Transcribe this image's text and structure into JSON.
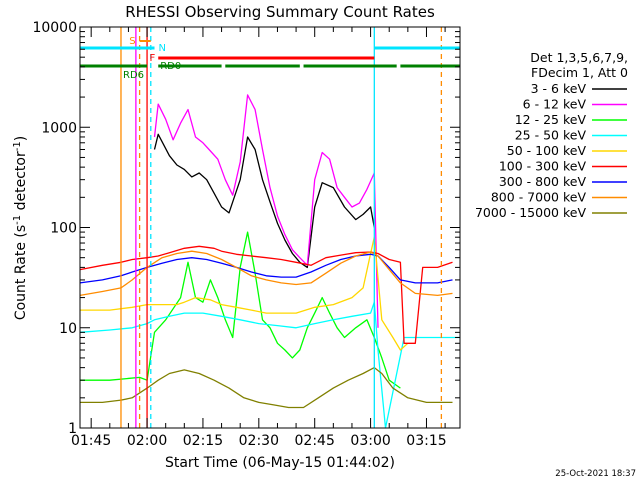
{
  "chart_data": {
    "type": "line",
    "title": "RHESSI Observing Summary Count Rates",
    "xlabel": "Start Time (06-May-15 01:44:02)",
    "ylabel": "Count Rate (s⁻¹ detector⁻¹)",
    "ylabel_main": "Count Rate (s",
    "ylabel_sup1": "-1",
    "ylabel_mid": " detector",
    "ylabel_sup2": "-1",
    "ylabel_end": ")",
    "y_scale": "log",
    "ylim": [
      1,
      10000
    ],
    "xlim": [
      "01:42",
      "03:24"
    ],
    "x_ticks": [
      "01:45",
      "02:00",
      "02:15",
      "02:30",
      "02:45",
      "03:00",
      "03:15"
    ],
    "y_ticks": [
      "1",
      "10",
      "100",
      "1000",
      "10000"
    ],
    "legend_header": [
      "Det 1,3,5,6,7,9,",
      "FDecim 1, Att 0"
    ],
    "timestamp": "25-Oct-2021 18:37",
    "flags": [
      {
        "label": "S",
        "color": "#ff8c00",
        "segments": [
          [
            "01:58",
            "02:01"
          ]
        ]
      },
      {
        "label": "N",
        "color": "#00e5ff",
        "segments": [
          [
            "01:42",
            "02:02"
          ],
          [
            "03:01",
            "03:24"
          ]
        ]
      },
      {
        "label": "F",
        "color": "#ff0000",
        "segments": [
          [
            "02:03",
            "03:01"
          ]
        ]
      },
      {
        "label": "RD0",
        "color": "#008000",
        "segments": [
          [
            "02:03",
            "02:20"
          ],
          [
            "02:21",
            "02:41"
          ],
          [
            "02:42",
            "03:07"
          ],
          [
            "03:08",
            "03:24"
          ]
        ]
      },
      {
        "label": "RD6",
        "color": "#008000",
        "segments": [
          [
            "01:42",
            "02:00"
          ]
        ]
      }
    ],
    "vlines": [
      {
        "x": "01:53",
        "color": "#ff8c00",
        "dash": false
      },
      {
        "x": "01:57",
        "color": "#ff00ff",
        "dash": false
      },
      {
        "x": "01:58",
        "color": "#ff8c00",
        "dash": true
      },
      {
        "x": "02:00",
        "color": "#ff0000",
        "dash": false
      },
      {
        "x": "02:01",
        "color": "#00e5ff",
        "dash": true
      },
      {
        "x": "03:01",
        "color": "#00e5ff",
        "dash": false
      },
      {
        "x": "03:19",
        "color": "#ff8c00",
        "dash": true
      }
    ],
    "series": [
      {
        "name": "3 - 6 keV",
        "color": "#000000",
        "points": [
          [
            "02:02",
            600
          ],
          [
            "02:03",
            850
          ],
          [
            "02:06",
            520
          ],
          [
            "02:08",
            420
          ],
          [
            "02:10",
            380
          ],
          [
            "02:12",
            320
          ],
          [
            "02:14",
            350
          ],
          [
            "02:16",
            300
          ],
          [
            "02:18",
            220
          ],
          [
            "02:20",
            160
          ],
          [
            "02:22",
            140
          ],
          [
            "02:25",
            300
          ],
          [
            "02:27",
            800
          ],
          [
            "02:29",
            600
          ],
          [
            "02:31",
            300
          ],
          [
            "02:33",
            180
          ],
          [
            "02:35",
            110
          ],
          [
            "02:37",
            75
          ],
          [
            "02:39",
            55
          ],
          [
            "02:41",
            45
          ],
          [
            "02:43",
            40
          ],
          [
            "02:45",
            160
          ],
          [
            "02:47",
            280
          ],
          [
            "02:50",
            250
          ],
          [
            "02:53",
            160
          ],
          [
            "02:56",
            120
          ],
          [
            "02:58",
            135
          ],
          [
            "03:00",
            160
          ],
          [
            "03:01",
            100
          ]
        ]
      },
      {
        "name": "6 - 12 keV",
        "color": "#ff00ff",
        "points": [
          [
            "02:02",
            800
          ],
          [
            "02:03",
            1700
          ],
          [
            "02:05",
            1200
          ],
          [
            "02:07",
            750
          ],
          [
            "02:09",
            1100
          ],
          [
            "02:11",
            1500
          ],
          [
            "02:13",
            800
          ],
          [
            "02:15",
            700
          ],
          [
            "02:17",
            580
          ],
          [
            "02:19",
            480
          ],
          [
            "02:21",
            300
          ],
          [
            "02:23",
            210
          ],
          [
            "02:25",
            450
          ],
          [
            "02:27",
            2100
          ],
          [
            "02:29",
            1500
          ],
          [
            "02:31",
            600
          ],
          [
            "02:33",
            250
          ],
          [
            "02:35",
            130
          ],
          [
            "02:37",
            85
          ],
          [
            "02:39",
            60
          ],
          [
            "02:41",
            50
          ],
          [
            "02:43",
            42
          ],
          [
            "02:45",
            300
          ],
          [
            "02:47",
            560
          ],
          [
            "02:49",
            480
          ],
          [
            "02:51",
            250
          ],
          [
            "02:53",
            200
          ],
          [
            "02:55",
            160
          ],
          [
            "02:57",
            175
          ],
          [
            "02:59",
            240
          ],
          [
            "03:01",
            350
          ],
          [
            "03:02",
            10
          ]
        ]
      },
      {
        "name": "12 - 25 keV",
        "color": "#00ff00",
        "points": [
          [
            "01:42",
            3
          ],
          [
            "01:50",
            3
          ],
          [
            "01:58",
            3.2
          ],
          [
            "02:00",
            3
          ],
          [
            "02:02",
            9
          ],
          [
            "02:05",
            12
          ],
          [
            "02:09",
            20
          ],
          [
            "02:11",
            45
          ],
          [
            "02:13",
            20
          ],
          [
            "02:15",
            18
          ],
          [
            "02:17",
            30
          ],
          [
            "02:19",
            20
          ],
          [
            "02:21",
            12
          ],
          [
            "02:23",
            8
          ],
          [
            "02:25",
            40
          ],
          [
            "02:27",
            90
          ],
          [
            "02:29",
            35
          ],
          [
            "02:31",
            12
          ],
          [
            "02:33",
            10
          ],
          [
            "02:35",
            7
          ],
          [
            "02:37",
            6
          ],
          [
            "02:39",
            5
          ],
          [
            "02:41",
            6
          ],
          [
            "02:43",
            10
          ],
          [
            "02:45",
            14
          ],
          [
            "02:47",
            20
          ],
          [
            "02:49",
            14
          ],
          [
            "02:51",
            10
          ],
          [
            "02:53",
            8
          ],
          [
            "02:56",
            10
          ],
          [
            "02:59",
            12
          ],
          [
            "03:01",
            8
          ],
          [
            "03:03",
            5
          ],
          [
            "03:05",
            3
          ],
          [
            "03:08",
            2.5
          ]
        ]
      },
      {
        "name": "25 - 50 keV",
        "color": "#00ffff",
        "points": [
          [
            "01:42",
            9
          ],
          [
            "01:50",
            9.5
          ],
          [
            "01:56",
            10
          ],
          [
            "02:00",
            11
          ],
          [
            "02:02",
            12
          ],
          [
            "02:06",
            13
          ],
          [
            "02:10",
            14
          ],
          [
            "02:15",
            14
          ],
          [
            "02:20",
            13
          ],
          [
            "02:25",
            12
          ],
          [
            "02:30",
            11
          ],
          [
            "02:35",
            10.5
          ],
          [
            "02:40",
            10
          ],
          [
            "02:45",
            11
          ],
          [
            "02:50",
            12
          ],
          [
            "02:55",
            13
          ],
          [
            "03:00",
            14
          ],
          [
            "03:01",
            18
          ],
          [
            "03:02",
            6
          ],
          [
            "03:04",
            1
          ],
          [
            "03:09",
            8
          ],
          [
            "03:15",
            8
          ],
          [
            "03:24",
            8
          ]
        ]
      },
      {
        "name": "50 - 100 keV",
        "color": "#ffd700",
        "points": [
          [
            "01:42",
            15
          ],
          [
            "01:50",
            15
          ],
          [
            "01:56",
            16
          ],
          [
            "02:00",
            17
          ],
          [
            "02:04",
            17
          ],
          [
            "02:08",
            17
          ],
          [
            "02:10",
            18
          ],
          [
            "02:13",
            20
          ],
          [
            "02:17",
            19
          ],
          [
            "02:20",
            17
          ],
          [
            "02:24",
            16
          ],
          [
            "02:28",
            15
          ],
          [
            "02:32",
            14
          ],
          [
            "02:36",
            14
          ],
          [
            "02:40",
            14
          ],
          [
            "02:45",
            16
          ],
          [
            "02:50",
            17
          ],
          [
            "02:55",
            20
          ],
          [
            "02:58",
            25
          ],
          [
            "03:00",
            55
          ],
          [
            "03:01",
            80
          ],
          [
            "03:03",
            12
          ],
          [
            "03:06",
            8
          ],
          [
            "03:08",
            6
          ],
          [
            "03:10",
            7
          ]
        ]
      },
      {
        "name": "100 - 300 keV",
        "color": "#ff0000",
        "points": [
          [
            "01:42",
            38
          ],
          [
            "01:48",
            42
          ],
          [
            "01:53",
            45
          ],
          [
            "01:56",
            48
          ],
          [
            "02:00",
            50
          ],
          [
            "02:03",
            52
          ],
          [
            "02:06",
            56
          ],
          [
            "02:10",
            62
          ],
          [
            "02:14",
            65
          ],
          [
            "02:18",
            62
          ],
          [
            "02:20",
            58
          ],
          [
            "02:24",
            54
          ],
          [
            "02:28",
            52
          ],
          [
            "02:32",
            50
          ],
          [
            "02:36",
            48
          ],
          [
            "02:40",
            45
          ],
          [
            "02:44",
            42
          ],
          [
            "02:48",
            50
          ],
          [
            "02:52",
            53
          ],
          [
            "02:56",
            56
          ],
          [
            "03:00",
            57
          ],
          [
            "03:02",
            55
          ],
          [
            "03:05",
            48
          ],
          [
            "03:08",
            45
          ],
          [
            "03:09",
            7
          ],
          [
            "03:12",
            7
          ],
          [
            "03:14",
            40
          ],
          [
            "03:18",
            40
          ],
          [
            "03:22",
            45
          ]
        ]
      },
      {
        "name": "300 - 800 keV",
        "color": "#0000ff",
        "points": [
          [
            "01:42",
            28
          ],
          [
            "01:48",
            30
          ],
          [
            "01:53",
            33
          ],
          [
            "01:56",
            36
          ],
          [
            "02:00",
            40
          ],
          [
            "02:04",
            44
          ],
          [
            "02:08",
            48
          ],
          [
            "02:12",
            50
          ],
          [
            "02:16",
            48
          ],
          [
            "02:20",
            44
          ],
          [
            "02:24",
            40
          ],
          [
            "02:28",
            36
          ],
          [
            "02:32",
            33
          ],
          [
            "02:36",
            32
          ],
          [
            "02:40",
            32
          ],
          [
            "02:44",
            36
          ],
          [
            "02:48",
            42
          ],
          [
            "02:52",
            48
          ],
          [
            "02:56",
            52
          ],
          [
            "03:00",
            54
          ],
          [
            "03:02",
            52
          ],
          [
            "03:05",
            40
          ],
          [
            "03:08",
            30
          ],
          [
            "03:12",
            28
          ],
          [
            "03:18",
            28
          ],
          [
            "03:22",
            30
          ]
        ]
      },
      {
        "name": "800 - 7000 keV",
        "color": "#ff8c00",
        "points": [
          [
            "01:42",
            21
          ],
          [
            "01:48",
            23
          ],
          [
            "01:53",
            25
          ],
          [
            "01:56",
            30
          ],
          [
            "02:00",
            40
          ],
          [
            "02:04",
            50
          ],
          [
            "02:08",
            55
          ],
          [
            "02:12",
            58
          ],
          [
            "02:16",
            55
          ],
          [
            "02:20",
            48
          ],
          [
            "02:24",
            40
          ],
          [
            "02:28",
            33
          ],
          [
            "02:32",
            30
          ],
          [
            "02:36",
            28
          ],
          [
            "02:40",
            27
          ],
          [
            "02:44",
            28
          ],
          [
            "02:48",
            35
          ],
          [
            "02:52",
            44
          ],
          [
            "02:56",
            52
          ],
          [
            "03:00",
            57
          ],
          [
            "03:02",
            52
          ],
          [
            "03:05",
            38
          ],
          [
            "03:08",
            28
          ],
          [
            "03:12",
            22
          ],
          [
            "03:18",
            21
          ],
          [
            "03:22",
            22
          ]
        ]
      },
      {
        "name": "7000 - 15000 keV",
        "color": "#808000",
        "points": [
          [
            "01:42",
            1.8
          ],
          [
            "01:48",
            1.8
          ],
          [
            "01:53",
            1.9
          ],
          [
            "01:56",
            2
          ],
          [
            "02:00",
            2.5
          ],
          [
            "02:03",
            3
          ],
          [
            "02:06",
            3.5
          ],
          [
            "02:10",
            3.8
          ],
          [
            "02:14",
            3.5
          ],
          [
            "02:18",
            3
          ],
          [
            "02:22",
            2.5
          ],
          [
            "02:26",
            2
          ],
          [
            "02:30",
            1.8
          ],
          [
            "02:34",
            1.7
          ],
          [
            "02:38",
            1.6
          ],
          [
            "02:42",
            1.6
          ],
          [
            "02:46",
            2
          ],
          [
            "02:50",
            2.5
          ],
          [
            "02:54",
            3
          ],
          [
            "02:58",
            3.5
          ],
          [
            "03:01",
            4
          ],
          [
            "03:03",
            3.5
          ],
          [
            "03:06",
            2.5
          ],
          [
            "03:10",
            2
          ],
          [
            "03:15",
            1.8
          ],
          [
            "03:22",
            1.8
          ]
        ]
      }
    ]
  }
}
